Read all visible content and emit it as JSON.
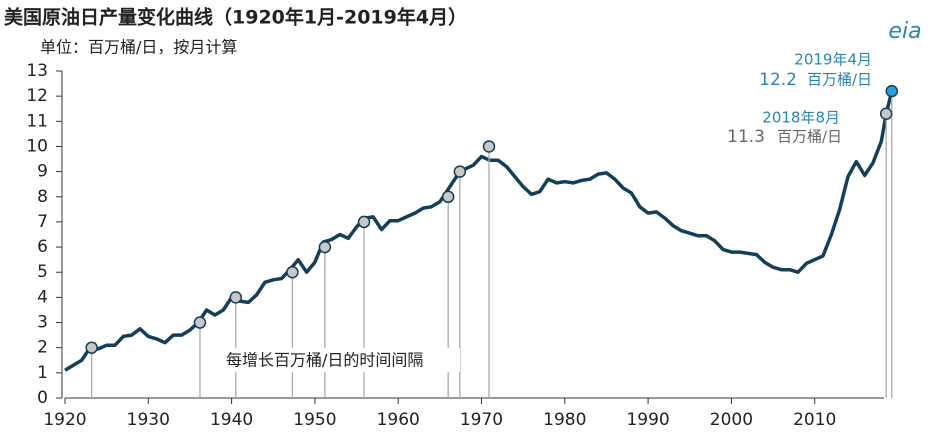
{
  "chart_data": {
    "type": "line",
    "title": "美国原油日产量变化曲线（1920年1月-2019年4月）",
    "subtitle": "单位：百万桶/日，按月计算",
    "logo": "eia",
    "xlim": [
      1920,
      2020
    ],
    "xticks": [
      1920,
      1930,
      1940,
      1950,
      1960,
      1970,
      1980,
      1990,
      2000,
      2010
    ],
    "ylim": [
      0,
      13
    ],
    "yticks": [
      0,
      1,
      2,
      3,
      4,
      5,
      6,
      7,
      8,
      9,
      10,
      11,
      12,
      13
    ],
    "series": [
      {
        "color": "#143f57",
        "x": [
          1920,
          1921,
          1922,
          1923,
          1924,
          1925,
          1926,
          1927,
          1928,
          1929,
          1930,
          1931,
          1932,
          1933,
          1934,
          1935,
          1936,
          1937,
          1938,
          1939,
          1940,
          1941,
          1942,
          1943,
          1944,
          1945,
          1946,
          1947,
          1948,
          1949,
          1950,
          1951,
          1952,
          1953,
          1954,
          1955,
          1956,
          1957,
          1958,
          1959,
          1960,
          1961,
          1962,
          1963,
          1964,
          1965,
          1966,
          1967,
          1968,
          1969,
          1970,
          1971,
          1972,
          1973,
          1974,
          1975,
          1976,
          1977,
          1978,
          1979,
          1980,
          1981,
          1982,
          1983,
          1984,
          1985,
          1986,
          1987,
          1988,
          1989,
          1990,
          1991,
          1992,
          1993,
          1994,
          1995,
          1996,
          1997,
          1998,
          1999,
          2000,
          2001,
          2002,
          2003,
          2004,
          2005,
          2006,
          2007,
          2008,
          2009,
          2010,
          2011,
          2012,
          2013,
          2014,
          2015,
          2016,
          2017,
          2018,
          2018.58,
          2019.25
        ],
        "values": [
          1.1,
          1.3,
          1.5,
          2.0,
          1.95,
          2.1,
          2.1,
          2.45,
          2.5,
          2.75,
          2.45,
          2.35,
          2.2,
          2.5,
          2.5,
          2.7,
          3.0,
          3.5,
          3.3,
          3.5,
          4.0,
          3.85,
          3.8,
          4.1,
          4.6,
          4.7,
          4.75,
          5.1,
          5.5,
          5.0,
          5.4,
          6.2,
          6.3,
          6.5,
          6.35,
          6.8,
          7.15,
          7.2,
          6.7,
          7.05,
          7.05,
          7.2,
          7.35,
          7.55,
          7.6,
          7.8,
          8.3,
          8.8,
          9.1,
          9.25,
          9.6,
          9.45,
          9.45,
          9.2,
          8.8,
          8.4,
          8.1,
          8.2,
          8.7,
          8.55,
          8.6,
          8.55,
          8.65,
          8.7,
          8.9,
          8.95,
          8.7,
          8.35,
          8.15,
          7.6,
          7.35,
          7.4,
          7.15,
          6.85,
          6.65,
          6.55,
          6.45,
          6.45,
          6.25,
          5.9,
          5.8,
          5.8,
          5.75,
          5.7,
          5.4,
          5.2,
          5.1,
          5.1,
          5.0,
          5.35,
          5.5,
          5.65,
          6.5,
          7.5,
          8.8,
          9.4,
          8.85,
          9.35,
          10.2,
          11.3,
          12.2
        ]
      }
    ],
    "milestones": {
      "x": [
        1923.2,
        1936.2,
        1940.5,
        1947.3,
        1951.2,
        1955.9,
        1966,
        1967.4,
        1970.9,
        2018.58,
        2019.25
      ],
      "values": [
        2,
        3,
        4,
        5,
        6,
        7,
        8,
        9,
        10,
        11.3,
        12.2
      ],
      "color": "#c8c8c8",
      "highlight_color": "#2a9fd6"
    },
    "annotations": [
      "2019年4月",
      "百万桶/日",
      "2018年8月",
      "百万桶/日",
      "每增长百万桶/日的时间间隔"
    ],
    "annotation_colors": [
      "#2a86b0",
      "#666666"
    ]
  }
}
